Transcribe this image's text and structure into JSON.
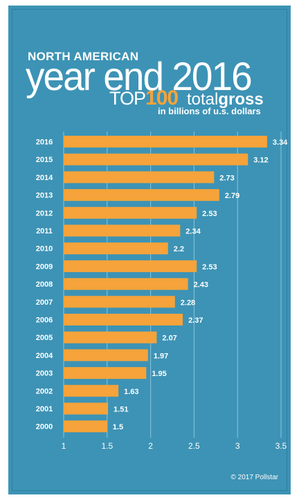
{
  "header": {
    "line1": "NORTH AMERICAN",
    "line2": "year end 2016",
    "top_prefix": "TOP",
    "top_number": "100",
    "total_word": "total",
    "gross_word": "gross",
    "subtitle": "in billions of u.s. dollars"
  },
  "footer": {
    "copyright": "© 2017 Pollstar"
  },
  "colors": {
    "background": "#3d93b5",
    "bar": "#f5a33a",
    "accent": "#f5a33a",
    "text": "#ffffff"
  },
  "chart_data": {
    "type": "bar",
    "orientation": "horizontal",
    "title": "NORTH AMERICAN year end 2016 TOP 100 total gross",
    "subtitle": "in billions of u.s. dollars",
    "categories": [
      "2016",
      "2015",
      "2014",
      "2013",
      "2012",
      "2011",
      "2010",
      "2009",
      "2008",
      "2007",
      "2006",
      "2005",
      "2004",
      "2003",
      "2002",
      "2001",
      "2000"
    ],
    "values": [
      3.34,
      3.12,
      2.73,
      2.79,
      2.53,
      2.34,
      2.2,
      2.53,
      2.43,
      2.28,
      2.37,
      2.07,
      1.97,
      1.95,
      1.63,
      1.51,
      1.5
    ],
    "value_labels": [
      "3.34",
      "3.12",
      "2.73",
      "2.79",
      "2.53",
      "2.34",
      "2.2",
      "2.53",
      "2.43",
      "2.28",
      "2.37",
      "2.07",
      "1.97",
      "1.95",
      "1.63",
      "1.51",
      "1.5"
    ],
    "xlim": [
      1,
      3.5
    ],
    "xticks": [
      "1",
      "1.5",
      "2",
      "2.5",
      "3",
      "3.5"
    ],
    "grid": true,
    "data_labels": true
  }
}
